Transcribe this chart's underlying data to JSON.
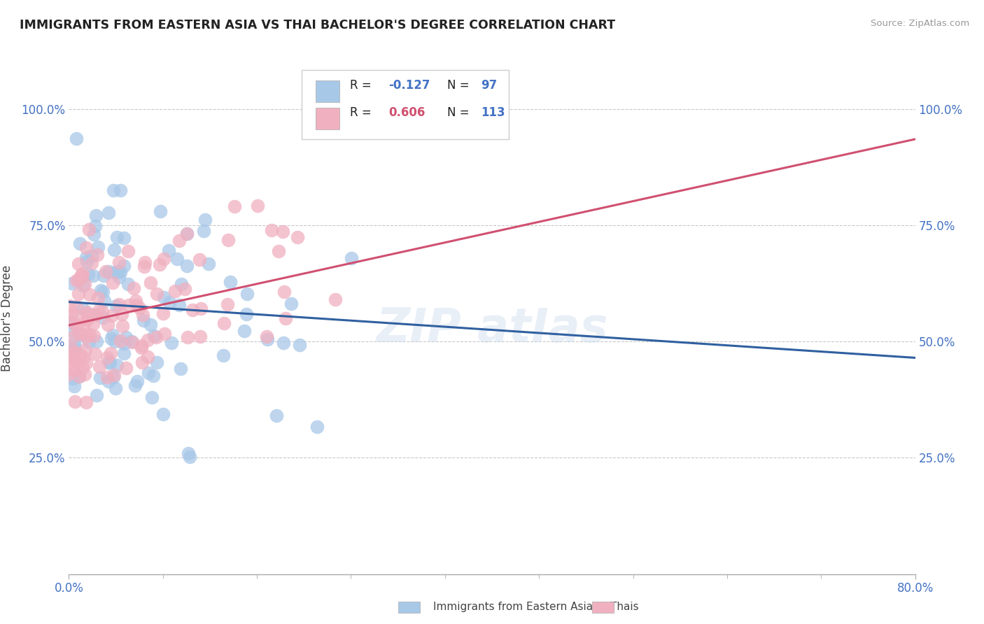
{
  "title": "IMMIGRANTS FROM EASTERN ASIA VS THAI BACHELOR'S DEGREE CORRELATION CHART",
  "source": "Source: ZipAtlas.com",
  "ylabel": "Bachelor's Degree",
  "legend_label1": "Immigrants from Eastern Asia",
  "legend_label2": "Thais",
  "R1": -0.127,
  "N1": 97,
  "R2": 0.606,
  "N2": 113,
  "color_blue": "#A8C8E8",
  "color_pink": "#F0B0C0",
  "color_blue_line": "#3060A0",
  "color_pink_line": "#D05070",
  "color_blue_text": "#4472C4",
  "color_pink_text": "#D05070",
  "xlim": [
    0.0,
    0.8
  ],
  "ylim": [
    0.0,
    1.1
  ],
  "yticks": [
    0.25,
    0.5,
    0.75,
    1.0
  ],
  "ytick_labels": [
    "25.0%",
    "50.0%",
    "75.0%",
    "100.0%"
  ],
  "blue_line_x": [
    0.0,
    0.8
  ],
  "blue_line_y": [
    0.585,
    0.465
  ],
  "pink_line_x": [
    0.0,
    0.8
  ],
  "pink_line_y": [
    0.535,
    0.935
  ]
}
